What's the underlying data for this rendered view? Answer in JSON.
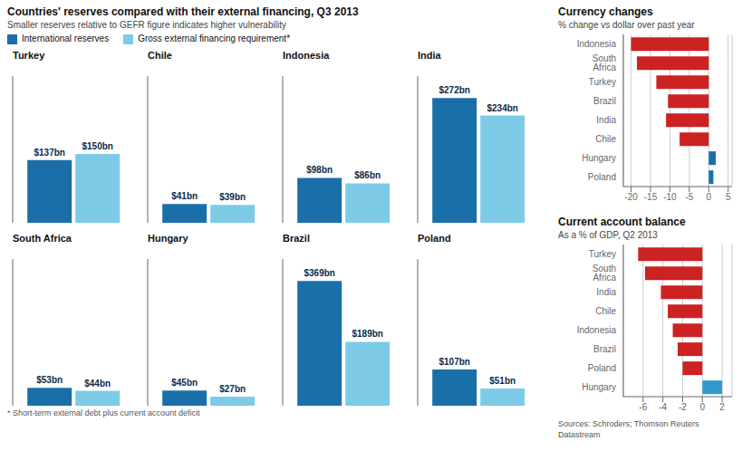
{
  "chart_data": [
    {
      "type": "bar",
      "title": "Countries' reserves compared with their external financing, Q3 2013",
      "subtitle": "Smaller reserves relative to GEFR figure indicates higher vulnerability",
      "categories": [
        "Turkey",
        "Chile",
        "Indonesia",
        "India"
      ],
      "series": [
        {
          "name": "International reserves",
          "color": "#1a6fa8",
          "values": [
            137,
            41,
            98,
            272
          ],
          "value_labels": [
            "$137bn",
            "$41bn",
            "$98bn",
            "$272bn"
          ]
        },
        {
          "name": "Gross external financing requirement*",
          "color": "#7ecbe8",
          "values": [
            150,
            39,
            86,
            234
          ],
          "value_labels": [
            "$150bn",
            "$39bn",
            "$86bn",
            "$234bn"
          ]
        }
      ],
      "ylim": [
        0,
        320
      ],
      "data_labels": true,
      "tick_labels": false,
      "legend": "top"
    },
    {
      "type": "bar",
      "categories": [
        "South Africa",
        "Hungary",
        "Brazil",
        "Poland"
      ],
      "series": [
        {
          "name": "International reserves",
          "color": "#1a6fa8",
          "values": [
            53,
            45,
            369,
            107
          ],
          "value_labels": [
            "$53bn",
            "$45bn",
            "$369bn",
            "$107bn"
          ]
        },
        {
          "name": "Gross external financing requirement*",
          "color": "#7ecbe8",
          "values": [
            44,
            27,
            189,
            51
          ],
          "value_labels": [
            "$44bn",
            "$27bn",
            "$189bn",
            "$51bn"
          ]
        }
      ],
      "ylim": [
        0,
        434.11764705882354
      ],
      "data_labels": true,
      "tick_labels": false,
      "annotations": [
        "* Short-term external debt plus current account deficit"
      ]
    },
    {
      "type": "bar",
      "orientation": "horizontal",
      "title": "Currency changes",
      "subtitle": "% change vs dollar over past year",
      "categories": [
        "Indonesia",
        "South Africa",
        "Turkey",
        "Brazil",
        "India",
        "Chile",
        "Hungary",
        "Poland"
      ],
      "values": [
        -20.0,
        -18.5,
        -13.5,
        -10.5,
        -11.0,
        -7.5,
        1.8,
        1.2
      ],
      "colors": [
        "#cc2222",
        "#cc2222",
        "#cc2222",
        "#cc2222",
        "#cc2222",
        "#cc2222",
        "#1a6fa8",
        "#1a6fa8"
      ],
      "xlim": [
        -22,
        6
      ],
      "xticks": [
        -20,
        -15,
        -10,
        -5,
        0,
        5
      ],
      "grid": true
    },
    {
      "type": "bar",
      "orientation": "horizontal",
      "title": "Current account balance",
      "subtitle": "As a % of GDP, Q2 2013",
      "categories": [
        "Turkey",
        "South Africa",
        "India",
        "Chile",
        "Indonesia",
        "Brazil",
        "Poland",
        "Hungary"
      ],
      "values": [
        -6.5,
        -5.8,
        -4.2,
        -3.5,
        -3.0,
        -2.5,
        -2.0,
        2.0
      ],
      "colors": [
        "#cc2222",
        "#cc2222",
        "#cc2222",
        "#cc2222",
        "#cc2222",
        "#cc2222",
        "#cc2222",
        "#3399cc"
      ],
      "xlim": [
        -8,
        3
      ],
      "xticks": [
        -6,
        -4,
        -2,
        0,
        2
      ],
      "grid": true,
      "annotations": [
        "Sources: Schroders; Thomson Reuters Datastream"
      ]
    }
  ]
}
